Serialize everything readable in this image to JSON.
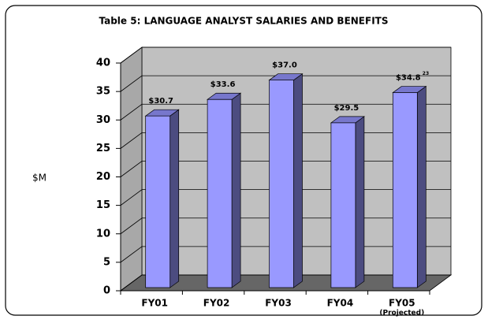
{
  "chart_data": {
    "type": "bar3d",
    "title": "Table 5:  LANGUAGE ANALYST SALARIES AND BENEFITS",
    "y_label": "$M",
    "categories": [
      "FY01",
      "FY02",
      "FY03",
      "FY04",
      "FY05"
    ],
    "category_notes": [
      null,
      null,
      null,
      null,
      "(Projected)"
    ],
    "values": [
      30.7,
      33.6,
      37.0,
      29.5,
      34.8
    ],
    "value_labels": [
      "$30.7",
      "$33.6",
      "$37.0",
      "$29.5",
      "$34.8"
    ],
    "value_label_notes": [
      null,
      null,
      null,
      null,
      "23"
    ],
    "color": "#9999ff",
    "ylim": [
      0,
      40
    ],
    "yticks": [
      0,
      5,
      10,
      15,
      20,
      25,
      30,
      35,
      40
    ],
    "grid": true
  }
}
